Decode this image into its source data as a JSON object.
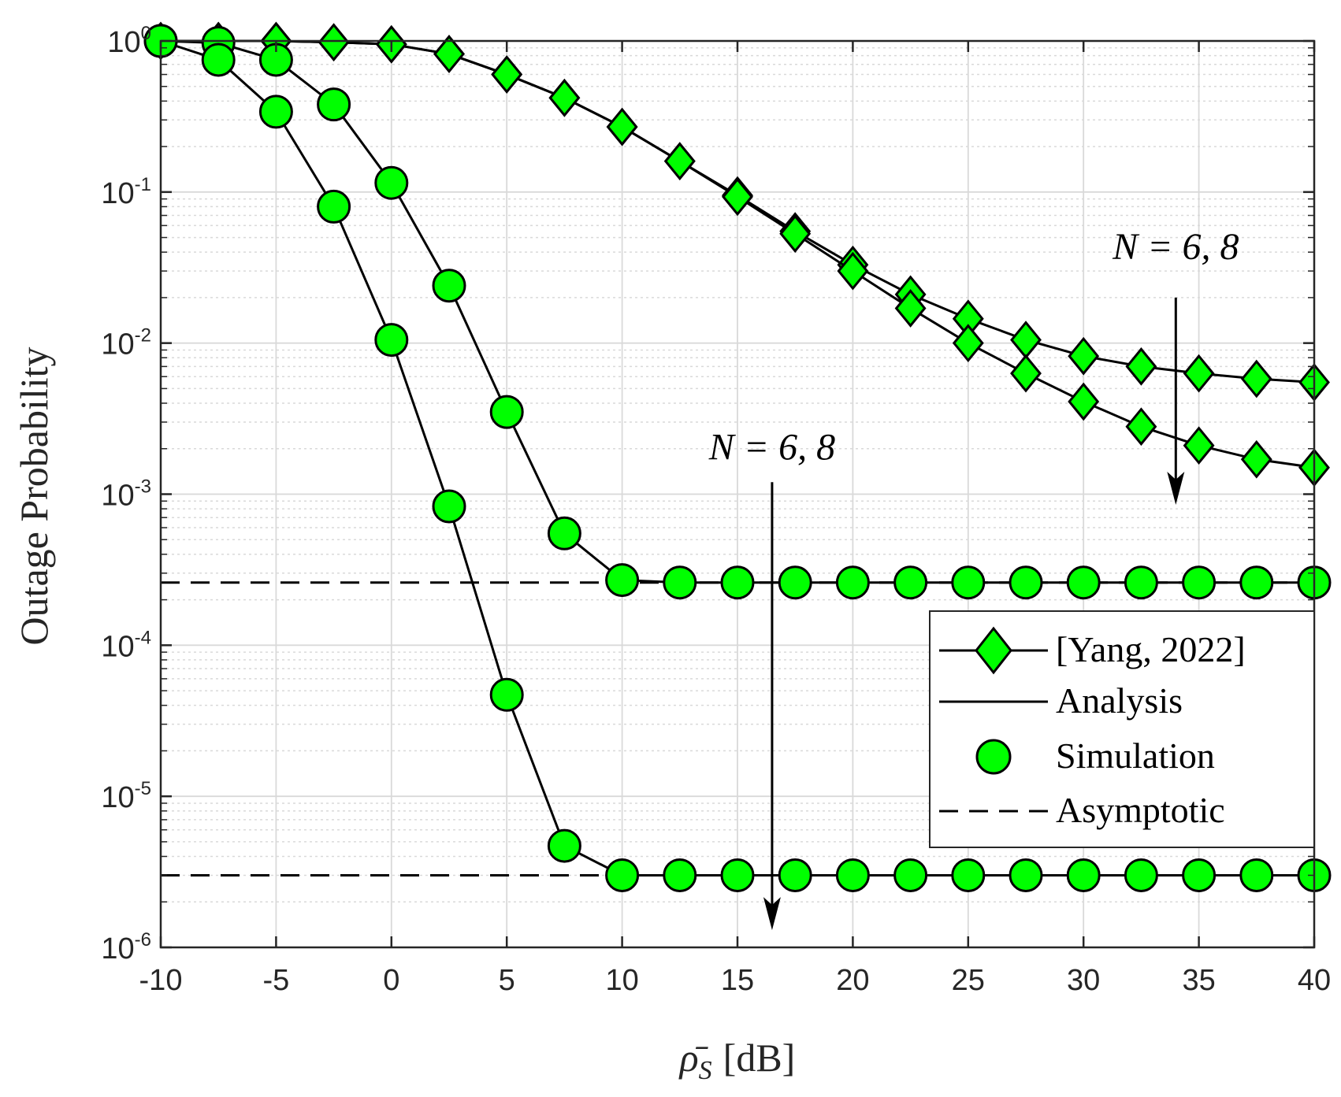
{
  "chart_data": {
    "type": "line",
    "title": "",
    "xlabel_symbol": "ρ̄",
    "xlabel_subscript": "S",
    "xlabel_unit": "[dB]",
    "ylabel": "Outage Probability",
    "xlim": [
      -10,
      40
    ],
    "ylim": [
      1e-06,
      1
    ],
    "yscale": "log",
    "grid": true,
    "minor_grid": true,
    "x_ticks": [
      -10,
      -5,
      0,
      5,
      10,
      15,
      20,
      25,
      30,
      35,
      40
    ],
    "x_tick_labels": [
      "-10",
      "-5",
      "0",
      "5",
      "10",
      "15",
      "20",
      "25",
      "30",
      "35",
      "40"
    ],
    "y_ticks": [
      {
        "value": 1,
        "base": "10",
        "exp": "0"
      },
      {
        "value": 0.1,
        "base": "10",
        "exp": "-1"
      },
      {
        "value": 0.01,
        "base": "10",
        "exp": "-2"
      },
      {
        "value": 0.001,
        "base": "10",
        "exp": "-3"
      },
      {
        "value": 0.0001,
        "base": "10",
        "exp": "-4"
      },
      {
        "value": 1e-05,
        "base": "10",
        "exp": "-5"
      },
      {
        "value": 1e-06,
        "base": "10",
        "exp": "-6"
      }
    ],
    "colors": {
      "marker_fill": "#00ff00",
      "line": "#000000",
      "grid": "#d9d9d9",
      "axis": "#262626"
    },
    "series": [
      {
        "legend_ref": "Yang",
        "kind": "line-diamond",
        "x": [
          -10,
          -7.5,
          -5,
          -2.5,
          0,
          2.5,
          5,
          7.5,
          10,
          12.5,
          15,
          17.5,
          20,
          22.5,
          25,
          27.5,
          30,
          32.5,
          35,
          37.5,
          40
        ],
        "y": [
          1.0,
          1.0,
          1.0,
          0.98,
          0.95,
          0.82,
          0.6,
          0.42,
          0.27,
          0.16,
          0.095,
          0.055,
          0.033,
          0.021,
          0.0145,
          0.0105,
          0.0082,
          0.007,
          0.0063,
          0.0058,
          0.0055
        ]
      },
      {
        "legend_ref": "Yang",
        "kind": "line-diamond",
        "x": [
          -10,
          -7.5,
          -5,
          -2.5,
          0,
          2.5,
          5,
          7.5,
          10,
          12.5,
          15,
          17.5,
          20,
          22.5,
          25,
          27.5,
          30,
          32.5,
          35,
          37.5,
          40
        ],
        "y": [
          1.0,
          1.0,
          1.0,
          0.98,
          0.95,
          0.82,
          0.6,
          0.42,
          0.27,
          0.16,
          0.093,
          0.053,
          0.03,
          0.017,
          0.01,
          0.0063,
          0.0041,
          0.0028,
          0.0021,
          0.0017,
          0.0015
        ]
      },
      {
        "legend_ref": "Analysis+Simulation",
        "kind": "line-circle",
        "x": [
          -10,
          -7.5,
          -5,
          -2.5,
          0,
          2.5,
          5,
          7.5,
          10,
          12.5,
          15,
          17.5,
          20,
          22.5,
          25,
          27.5,
          30,
          32.5,
          35,
          37.5,
          40
        ],
        "y": [
          1.0,
          0.97,
          0.75,
          0.38,
          0.115,
          0.024,
          0.0035,
          0.00055,
          0.00027,
          0.00026,
          0.00026,
          0.00026,
          0.00026,
          0.00026,
          0.00026,
          0.00026,
          0.00026,
          0.00026,
          0.00026,
          0.00026,
          0.00026
        ]
      },
      {
        "legend_ref": "Analysis+Simulation",
        "kind": "line-circle",
        "x": [
          -10,
          -7.5,
          -5,
          -2.5,
          0,
          2.5,
          5,
          7.5,
          10,
          12.5,
          15,
          17.5,
          20,
          22.5,
          25,
          27.5,
          30,
          32.5,
          35,
          37.5,
          40
        ],
        "y": [
          1.0,
          0.75,
          0.34,
          0.08,
          0.0105,
          0.00083,
          4.7e-05,
          4.7e-06,
          3e-06,
          3e-06,
          3e-06,
          3e-06,
          3e-06,
          3e-06,
          3e-06,
          3e-06,
          3e-06,
          3e-06,
          3e-06,
          3e-06,
          3e-06
        ]
      }
    ],
    "asymptotes": [
      {
        "legend_ref": "Asymptotic",
        "y": 0.00026,
        "x": [
          -10,
          40
        ]
      },
      {
        "legend_ref": "Asymptotic",
        "y": 3e-06,
        "x": [
          -10,
          40
        ]
      }
    ],
    "legend": {
      "position": "lower-right",
      "entries": [
        {
          "label": "[Yang, 2022]",
          "style": "line-diamond"
        },
        {
          "label": "Analysis",
          "style": "line"
        },
        {
          "label": "Simulation",
          "style": "circle"
        },
        {
          "label": "Asymptotic",
          "style": "dashed"
        }
      ]
    },
    "annotations": [
      {
        "text": "N = 6, 8",
        "at_x": 34,
        "at_y": 0.036,
        "arrow_from": [
          34,
          0.02
        ],
        "arrow_to": [
          34,
          0.00085
        ]
      },
      {
        "text": "N = 6, 8",
        "at_x": 16.5,
        "at_y": 0.0017,
        "arrow_from": [
          16.5,
          0.0012
        ],
        "arrow_to": [
          16.5,
          1.3e-06
        ]
      }
    ]
  }
}
